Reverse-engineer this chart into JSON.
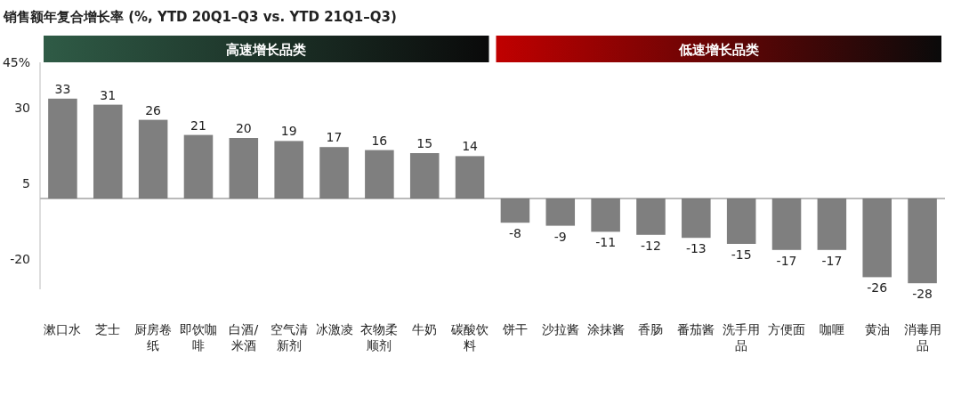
{
  "chart_data": {
    "type": "bar",
    "title": "销售额年复合增长率 (%, YTD 20Q1–Q3 vs. YTD 21Q1–Q3)",
    "categories": [
      "漱口水",
      "芝士",
      "厨房卷纸",
      "即饮咖啡",
      "白酒/米酒",
      "空气清新剂",
      "冰激凌",
      "衣物柔顺剂",
      "牛奶",
      "碳酸饮料",
      "饼干",
      "沙拉酱",
      "涂抹酱",
      "香肠",
      "番茄酱",
      "洗手用品",
      "方便面",
      "咖喱",
      "黄油",
      "消毒用品"
    ],
    "values": [
      33,
      31,
      26,
      21,
      20,
      19,
      17,
      16,
      15,
      14,
      -8,
      -9,
      -11,
      -12,
      -13,
      -15,
      -17,
      -17,
      -26,
      -28
    ],
    "color": "#7f7f7f",
    "data_labels": true,
    "ylim": [
      -30,
      45
    ],
    "yticks": [
      {
        "value": 45,
        "label": "45%"
      },
      30,
      5,
      -20
    ],
    "annotations": [
      "高速增长品类",
      "低速增长品类"
    ]
  }
}
